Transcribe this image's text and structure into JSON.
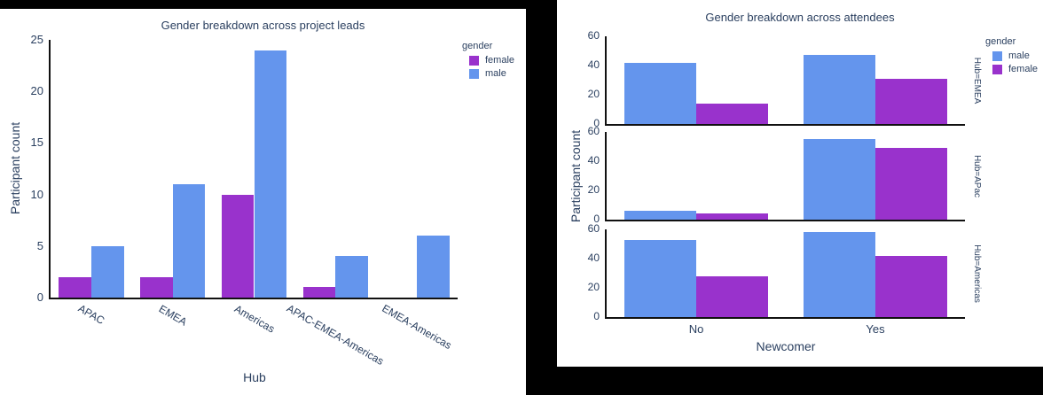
{
  "page_background": "#000000",
  "panel_background": "#ffffff",
  "colors": {
    "male": "#6495ED",
    "female": "#9932CC",
    "text": "#2a3f5f",
    "axis_line": "#111111"
  },
  "chart_data": [
    {
      "type": "bar",
      "title": "Gender breakdown across project leads",
      "xlabel": "Hub",
      "ylabel": "Participant count",
      "categories": [
        "APAC",
        "EMEA",
        "Americas",
        "APAC-EMEA-Americas",
        "EMEA-Americas"
      ],
      "series": [
        {
          "name": "female",
          "color": "#9932CC",
          "values": [
            2,
            2,
            10,
            1,
            0
          ]
        },
        {
          "name": "male",
          "color": "#6495ED",
          "values": [
            5,
            11,
            24,
            4,
            6
          ]
        }
      ],
      "ylim": [
        0,
        25
      ],
      "yticks": [
        0,
        5,
        10,
        15,
        20,
        25
      ],
      "tick_angle_deg": 30,
      "grid": false,
      "legend": {
        "title": "gender",
        "position": "top-right",
        "entries": [
          {
            "label": "female",
            "color_key": "female"
          },
          {
            "label": "male",
            "color_key": "male"
          }
        ]
      }
    },
    {
      "type": "bar",
      "title": "Gender breakdown across attendees",
      "xlabel": "Newcomer",
      "ylabel": "Participant count",
      "categories": [
        "No",
        "Yes"
      ],
      "facets": [
        {
          "label": "Hub=EMEA",
          "series": [
            {
              "name": "male",
              "color": "#6495ED",
              "values": [
                42,
                47
              ]
            },
            {
              "name": "female",
              "color": "#9932CC",
              "values": [
                14,
                31
              ]
            }
          ]
        },
        {
          "label": "Hub=APac",
          "series": [
            {
              "name": "male",
              "color": "#6495ED",
              "values": [
                6,
                55
              ]
            },
            {
              "name": "female",
              "color": "#9932CC",
              "values": [
                4,
                49
              ]
            }
          ]
        },
        {
          "label": "Hub=Americas",
          "series": [
            {
              "name": "male",
              "color": "#6495ED",
              "values": [
                53,
                58
              ]
            },
            {
              "name": "female",
              "color": "#9932CC",
              "values": [
                28,
                42
              ]
            }
          ]
        }
      ],
      "ylim": [
        0,
        60
      ],
      "yticks": [
        0,
        20,
        40,
        60
      ],
      "grid": false,
      "legend": {
        "title": "gender",
        "position": "top-right",
        "entries": [
          {
            "label": "male",
            "color_key": "male"
          },
          {
            "label": "female",
            "color_key": "female"
          }
        ]
      }
    }
  ]
}
